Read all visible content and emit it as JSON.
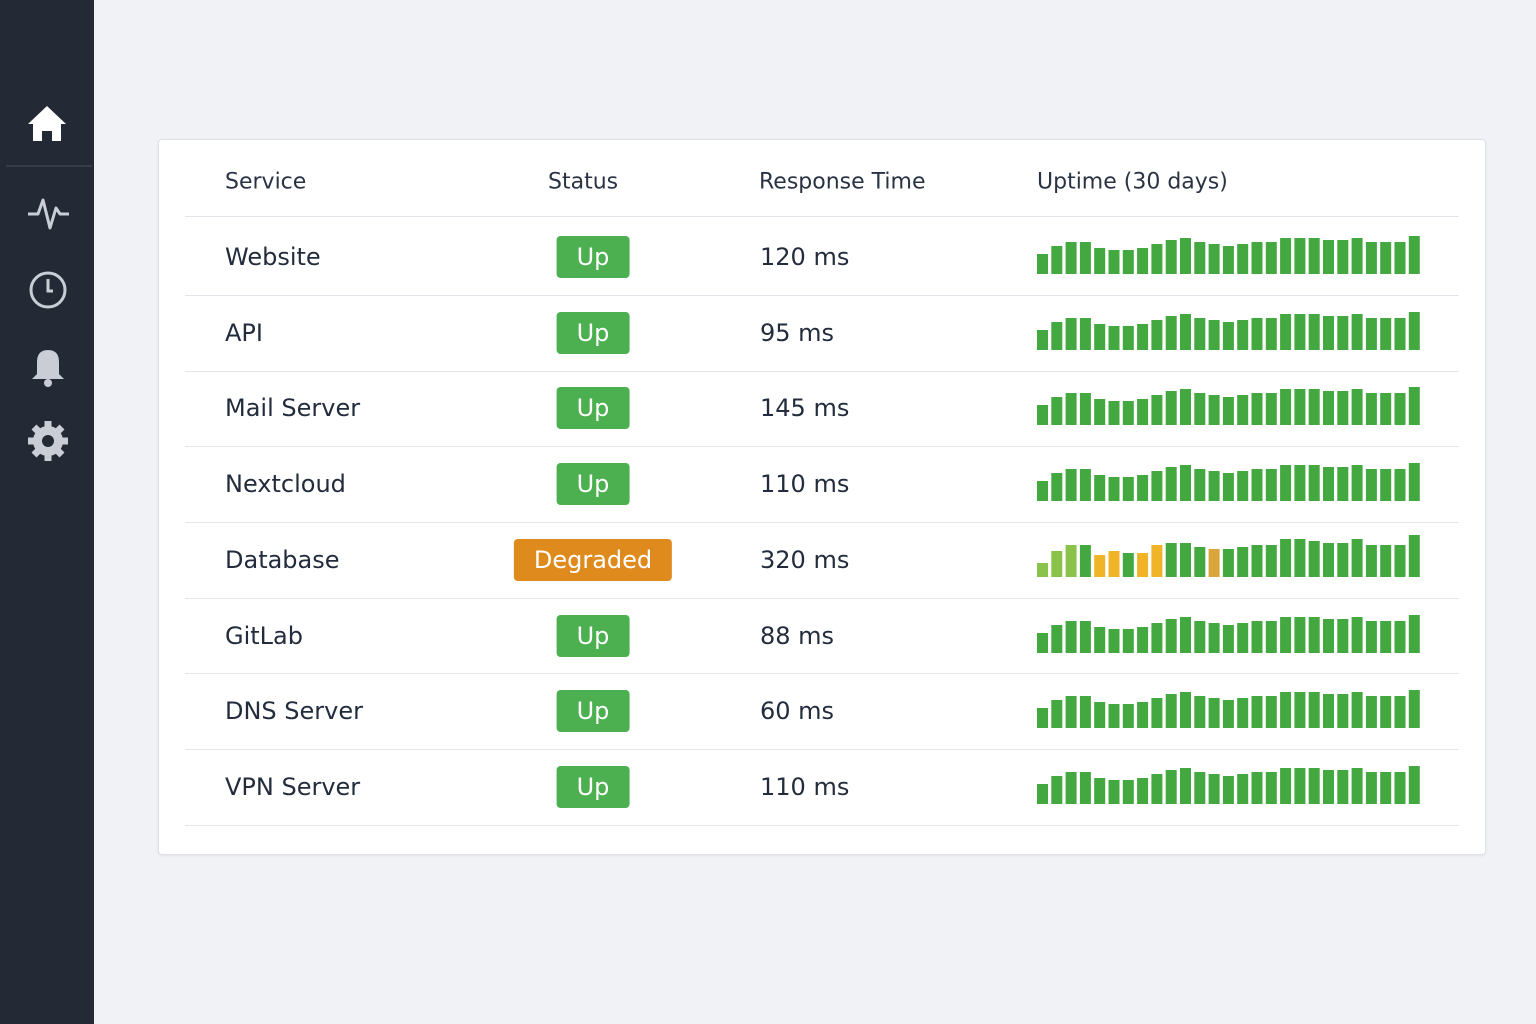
{
  "table": {
    "headers": [
      "Service",
      "Status",
      "Response Time",
      "Uptime (30 days)"
    ],
    "status_colors": {
      "Up": "#4caf50",
      "Degraded": "#df8a1c"
    },
    "bar_color": "#43a83f",
    "rows": [
      {
        "service": "Website",
        "status": "Up",
        "response": "120 ms",
        "uptime": [
          20,
          28,
          32,
          32,
          26,
          24,
          24,
          26,
          30,
          34,
          36,
          32,
          30,
          28,
          30,
          32,
          32,
          36,
          36,
          36,
          34,
          34,
          36,
          32,
          32,
          32,
          38
        ]
      },
      {
        "service": "API",
        "status": "Up",
        "response": "95 ms",
        "uptime": [
          20,
          28,
          32,
          32,
          26,
          24,
          24,
          26,
          30,
          34,
          36,
          32,
          30,
          28,
          30,
          32,
          32,
          36,
          36,
          36,
          34,
          34,
          36,
          32,
          32,
          32,
          38
        ]
      },
      {
        "service": "Mail Server",
        "status": "Up",
        "response": "145 ms",
        "uptime": [
          20,
          28,
          32,
          32,
          26,
          24,
          24,
          26,
          30,
          34,
          36,
          32,
          30,
          28,
          30,
          32,
          32,
          36,
          36,
          36,
          34,
          34,
          36,
          32,
          32,
          32,
          38
        ]
      },
      {
        "service": "Nextcloud",
        "status": "Up",
        "response": "110 ms",
        "uptime": [
          20,
          28,
          32,
          32,
          26,
          24,
          24,
          26,
          30,
          34,
          36,
          32,
          30,
          28,
          30,
          32,
          32,
          36,
          36,
          36,
          34,
          34,
          36,
          32,
          32,
          32,
          38
        ]
      },
      {
        "service": "Database",
        "status": "Degraded",
        "response": "320 ms",
        "uptime": [
          14,
          26,
          32,
          32,
          22,
          26,
          24,
          24,
          32,
          34,
          34,
          30,
          28,
          28,
          30,
          32,
          32,
          38,
          38,
          36,
          34,
          34,
          38,
          32,
          32,
          32,
          42
        ],
        "uptime_colors": [
          "#8bc34a",
          "#8bc34a",
          "#8bc34a",
          "#43a83f",
          "#f0b429",
          "#f0b429",
          "#43a83f",
          "#f0b429",
          "#f0b429",
          "#43a83f",
          "#43a83f",
          "#43a83f",
          "#d9a63a",
          "#43a83f",
          "#43a83f",
          "#43a83f",
          "#43a83f",
          "#43a83f",
          "#43a83f",
          "#43a83f",
          "#43a83f",
          "#43a83f",
          "#43a83f",
          "#43a83f",
          "#43a83f",
          "#43a83f",
          "#43a83f"
        ]
      },
      {
        "service": "GitLab",
        "status": "Up",
        "response": "88 ms",
        "uptime": [
          20,
          28,
          32,
          32,
          26,
          24,
          24,
          26,
          30,
          34,
          36,
          32,
          30,
          28,
          30,
          32,
          32,
          36,
          36,
          36,
          34,
          34,
          36,
          32,
          32,
          32,
          38
        ]
      },
      {
        "service": "DNS Server",
        "status": "Up",
        "response": "60 ms",
        "uptime": [
          20,
          28,
          32,
          32,
          26,
          24,
          24,
          26,
          30,
          34,
          36,
          32,
          30,
          28,
          30,
          32,
          32,
          36,
          36,
          36,
          34,
          34,
          36,
          32,
          32,
          32,
          38
        ]
      },
      {
        "service": "VPN Server",
        "status": "Up",
        "response": "110 ms",
        "uptime": [
          20,
          28,
          32,
          32,
          26,
          24,
          24,
          26,
          30,
          34,
          36,
          32,
          30,
          28,
          30,
          32,
          32,
          36,
          36,
          36,
          34,
          34,
          36,
          32,
          32,
          32,
          38
        ]
      }
    ]
  }
}
